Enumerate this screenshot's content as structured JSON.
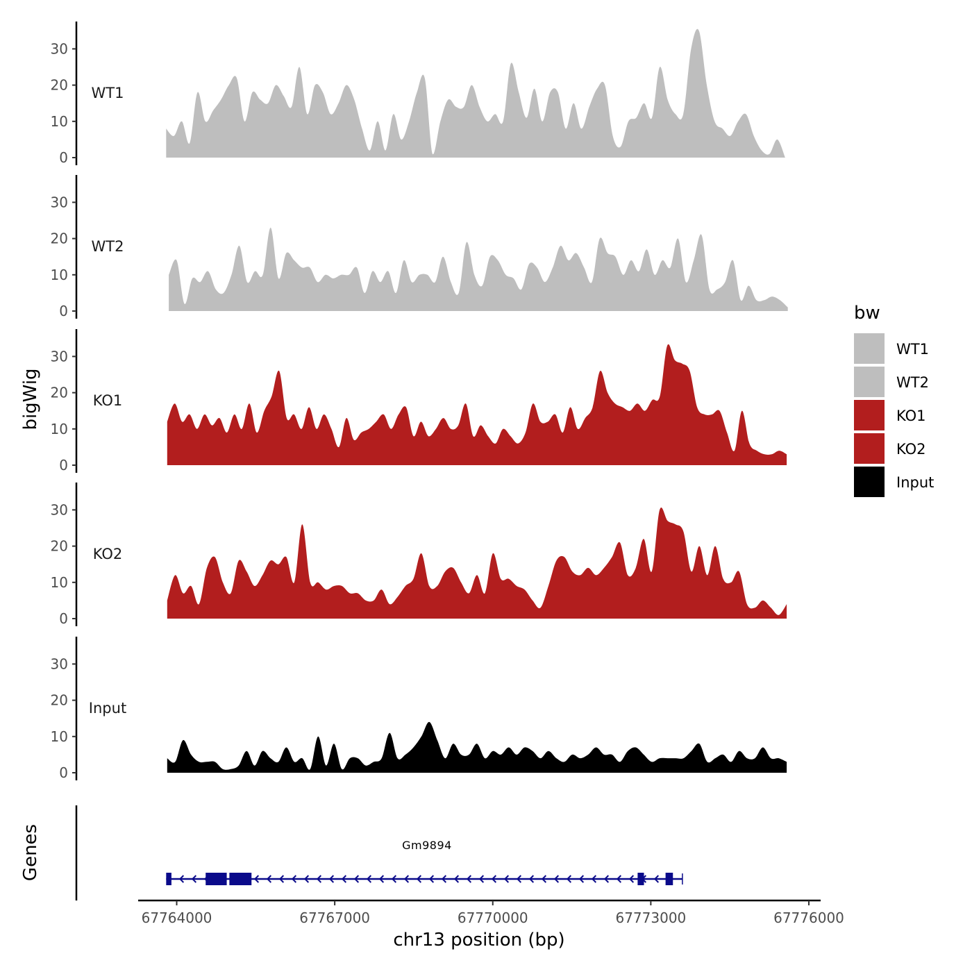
{
  "chart_data": {
    "type": "area",
    "title": "",
    "ylabel": "bigWig",
    "genes_label": "Genes",
    "xlabel": "chr13 position (bp)",
    "xlim": [
      67763400,
      67775600
    ],
    "xticks": [
      67764000,
      67767000,
      67770000,
      67773000,
      67776000
    ],
    "xtick_labels": [
      "67764000",
      "67767000",
      "67770000",
      "67773000",
      "67776000"
    ],
    "ylim": [
      0,
      37
    ],
    "yticks": [
      0,
      10,
      20,
      30
    ],
    "ytick_labels": [
      "0",
      "10",
      "20",
      "30"
    ],
    "legend": {
      "title": "bw",
      "position": "right",
      "entries": [
        {
          "label": "WT1",
          "color": "#bebebe"
        },
        {
          "label": "WT2",
          "color": "#bebebe"
        },
        {
          "label": "KO1",
          "color": "#b21e1e"
        },
        {
          "label": "KO2",
          "color": "#b21e1e"
        },
        {
          "label": "Input",
          "color": "#000000"
        }
      ]
    },
    "series": [
      {
        "name": "WT1",
        "color": "#bebebe",
        "x_start": 67763800,
        "x_end": 67775550,
        "values": [
          8,
          6,
          10,
          4,
          18,
          10,
          13,
          16,
          20,
          22,
          10,
          18,
          16,
          15,
          20,
          17,
          14,
          25,
          12,
          20,
          18,
          12,
          15,
          20,
          16,
          8,
          2,
          10,
          2,
          12,
          5,
          10,
          18,
          22,
          1,
          10,
          16,
          14,
          14,
          20,
          14,
          10,
          12,
          10,
          26,
          18,
          11,
          19,
          10,
          18,
          18,
          8,
          15,
          8,
          14,
          19,
          20,
          6,
          3,
          10,
          11,
          15,
          11,
          25,
          16,
          12,
          12,
          30,
          35,
          20,
          10,
          8,
          6,
          10,
          12,
          6,
          2,
          1,
          5,
          0
        ]
      },
      {
        "name": "WT2",
        "color": "#bebebe",
        "x_start": 67763850,
        "x_end": 67775600,
        "values": [
          10,
          14,
          2,
          9,
          8,
          11,
          6,
          5,
          10,
          18,
          8,
          11,
          10,
          23,
          9,
          16,
          14,
          12,
          12,
          8,
          10,
          9,
          10,
          10,
          12,
          5,
          11,
          8,
          11,
          5,
          14,
          8,
          10,
          10,
          8,
          15,
          8,
          5,
          19,
          10,
          7,
          15,
          14,
          10,
          9,
          6,
          13,
          12,
          8,
          12,
          18,
          14,
          16,
          12,
          8,
          20,
          16,
          15,
          10,
          14,
          11,
          17,
          10,
          14,
          12,
          20,
          8,
          14,
          21,
          6,
          6,
          8,
          14,
          3,
          7,
          3,
          3,
          4,
          3,
          1
        ]
      },
      {
        "name": "KO1",
        "color": "#b21e1e",
        "x_start": 67763820,
        "x_end": 67775580,
        "values": [
          12,
          17,
          12,
          14,
          10,
          14,
          11,
          13,
          9,
          14,
          10,
          17,
          9,
          15,
          19,
          26,
          13,
          14,
          10,
          16,
          10,
          14,
          10,
          5,
          13,
          7,
          9,
          10,
          12,
          14,
          10,
          14,
          16,
          8,
          12,
          8,
          10,
          13,
          10,
          11,
          17,
          8,
          11,
          8,
          6,
          10,
          8,
          6,
          9,
          17,
          12,
          12,
          14,
          9,
          16,
          10,
          13,
          16,
          26,
          20,
          17,
          16,
          15,
          17,
          15,
          18,
          19,
          33,
          29,
          28,
          26,
          16,
          14,
          14,
          15,
          9,
          4,
          15,
          6,
          4,
          3,
          3,
          4,
          3
        ]
      },
      {
        "name": "KO2",
        "color": "#b21e1e",
        "x_start": 67763820,
        "x_end": 67775580,
        "values": [
          5,
          12,
          7,
          9,
          4,
          14,
          17,
          10,
          7,
          16,
          13,
          9,
          12,
          16,
          15,
          17,
          10,
          26,
          10,
          10,
          8,
          9,
          9,
          7,
          7,
          5,
          5,
          8,
          4,
          6,
          9,
          11,
          18,
          9,
          9,
          13,
          14,
          10,
          7,
          12,
          7,
          18,
          11,
          11,
          9,
          8,
          5,
          3,
          9,
          16,
          17,
          13,
          12,
          14,
          12,
          14,
          17,
          21,
          12,
          14,
          22,
          13,
          30,
          27,
          26,
          24,
          13,
          20,
          12,
          20,
          11,
          10,
          13,
          4,
          3,
          5,
          3,
          1,
          4
        ]
      },
      {
        "name": "Input",
        "color": "#000000",
        "x_start": 67763820,
        "x_end": 67775580,
        "values": [
          4,
          3,
          9,
          5,
          3,
          3,
          3,
          1,
          1,
          2,
          6,
          2,
          6,
          4,
          3,
          7,
          3,
          4,
          1,
          10,
          2,
          8,
          1,
          4,
          4,
          2,
          3,
          4,
          11,
          4,
          5,
          7,
          10,
          14,
          9,
          4,
          8,
          5,
          5,
          8,
          4,
          6,
          5,
          7,
          5,
          7,
          6,
          4,
          6,
          4,
          3,
          5,
          4,
          5,
          7,
          5,
          5,
          3,
          6,
          7,
          5,
          3,
          4,
          4,
          4,
          4,
          6,
          8,
          3,
          4,
          5,
          3,
          6,
          4,
          4,
          7,
          4,
          4,
          3
        ]
      }
    ],
    "genes": [
      {
        "name": "Gm9894",
        "strand": "-",
        "color": "#0a0a8a",
        "start": 67763800,
        "end": 67773600,
        "exons": [
          [
            67763800,
            67763900
          ],
          [
            67764550,
            67764950
          ],
          [
            67765000,
            67765420
          ],
          [
            67772750,
            67772870
          ],
          [
            67773280,
            67773420
          ]
        ]
      }
    ]
  }
}
